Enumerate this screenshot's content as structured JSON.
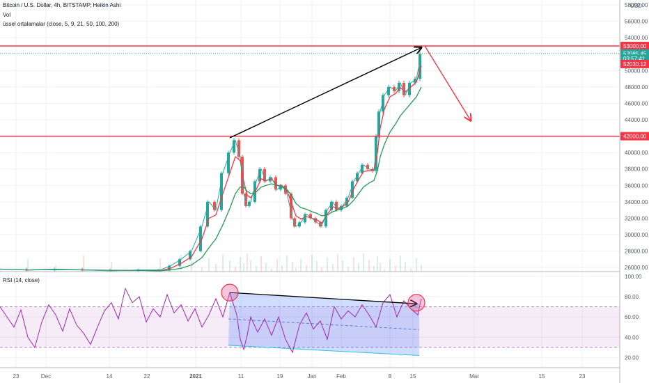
{
  "legend": {
    "title": "Bitcoin / U.S. Dollar, 4h, BITSTAMP, Heikin Ashi",
    "volume": "Vol",
    "ema": "üssel ortalamalar (close, 5, 9, 21, 50, 100, 200)",
    "rsi": "RSI (14, close)"
  },
  "price_axis": {
    "currency": "USD",
    "ticks": [
      "58000.00",
      "56000.00",
      "54000.00",
      "50000.00",
      "48000.00",
      "46000.00",
      "44000.00",
      "40000.00",
      "38000.00",
      "36000.00",
      "34000.00",
      "32000.00",
      "30000.00",
      "28000.00",
      "26000.00"
    ],
    "tags": [
      {
        "label": "53000.00",
        "value": 53000,
        "color": "#f23645"
      },
      {
        "label": "52085.45",
        "value": 52085,
        "color": "#26a69a"
      },
      {
        "label": "03:57:41",
        "value": 51450,
        "color": "#26a69a"
      },
      {
        "label": "52030.12",
        "value": 50800,
        "color": "#f23645"
      },
      {
        "label": "42000.00",
        "value": 42000,
        "color": "#f23645"
      }
    ]
  },
  "rsi_axis": {
    "ticks": [
      "100.00",
      "80.00",
      "60.00",
      "40.00",
      "20.00"
    ]
  },
  "time_axis": {
    "labels": [
      "23",
      "Dec",
      "14",
      "22",
      "2021",
      "11",
      "19",
      "Jan",
      "Feb",
      "8",
      "15",
      "Mar",
      "15",
      "23"
    ],
    "bold": [
      "2021"
    ]
  },
  "chart_data": [
    {
      "type": "line",
      "title": "Bitcoin / U.S. Dollar, 4h, BITSTAMP, Heikin Ashi",
      "ylim": [
        25500,
        58600
      ],
      "x": [
        0,
        40,
        80,
        120,
        160,
        200,
        230,
        245,
        260,
        275,
        290,
        300,
        310,
        320,
        330,
        338,
        345,
        350,
        355,
        360,
        368,
        375,
        382,
        390,
        398,
        405,
        412,
        420,
        425,
        432,
        440,
        448,
        455,
        462,
        470,
        478,
        485,
        492,
        500,
        508,
        515,
        522,
        530,
        537,
        542,
        546,
        552,
        560,
        568,
        575,
        582,
        590,
        598,
        605
      ],
      "y": [
        25800,
        25700,
        25800,
        25700,
        25600,
        25700,
        25700,
        26200,
        27000,
        28000,
        31000,
        34000,
        33000,
        37500,
        40000,
        41500,
        39500,
        35000,
        33500,
        34000,
        36500,
        38000,
        36500,
        37000,
        35500,
        36000,
        35000,
        32000,
        31000,
        31500,
        32500,
        32000,
        31500,
        31000,
        33000,
        34000,
        33000,
        33500,
        34500,
        36500,
        37500,
        38500,
        38000,
        37800,
        42000,
        45000,
        47000,
        48000,
        47500,
        48500,
        47000,
        48500,
        49000,
        52000
      ],
      "series": [
        {
          "name": "EMA fast",
          "color": "#f23645",
          "y": [
            25800,
            25700,
            25800,
            25700,
            25650,
            25650,
            25600,
            25900,
            26500,
            27300,
            29500,
            32000,
            32400,
            35000,
            37500,
            39500,
            39000,
            36500,
            34800,
            34500,
            35500,
            36800,
            36600,
            36800,
            36000,
            36000,
            35400,
            33500,
            32300,
            31900,
            32200,
            32000,
            31800,
            31400,
            32500,
            33400,
            33200,
            33400,
            34000,
            35600,
            36700,
            37700,
            37800,
            37800,
            40000,
            43000,
            45300,
            46800,
            47200,
            47900,
            47400,
            48000,
            48600,
            50600
          ]
        },
        {
          "name": "EMA slow",
          "color": "#229954",
          "y": [
            25800,
            25700,
            25750,
            25700,
            25650,
            25650,
            25600,
            25700,
            25900,
            26300,
            27200,
            28400,
            29500,
            31200,
            33200,
            35000,
            35800,
            35800,
            35300,
            35000,
            35200,
            35800,
            36000,
            36200,
            36000,
            35800,
            35500,
            34600,
            33800,
            33300,
            33100,
            32800,
            32600,
            32300,
            32400,
            32800,
            33000,
            33200,
            33500,
            34200,
            35000,
            35800,
            36300,
            36600,
            37800,
            39500,
            41000,
            42500,
            43500,
            44500,
            45200,
            46000,
            46800,
            48000
          ]
        }
      ],
      "annotations": {
        "lines": [
          {
            "value": 53000,
            "color": "#f23645"
          },
          {
            "value": 42000,
            "color": "#f23645"
          }
        ],
        "arrows": [
          {
            "from": [
              330,
              41800
            ],
            "to": [
              605,
              52800
            ],
            "color": "#000000"
          },
          {
            "from": [
              610,
              53000
            ],
            "to": [
              676,
              43900
            ],
            "color": "#f23645"
          }
        ]
      }
    },
    {
      "type": "line",
      "title": "RSI (14, close)",
      "ylim": [
        10,
        104
      ],
      "bands": [
        70,
        30
      ],
      "midline": 50,
      "x": [
        0,
        10,
        20,
        30,
        40,
        50,
        60,
        70,
        80,
        90,
        100,
        110,
        120,
        130,
        140,
        150,
        160,
        170,
        180,
        190,
        200,
        210,
        220,
        230,
        240,
        250,
        260,
        270,
        280,
        290,
        300,
        310,
        320,
        330,
        340,
        345,
        350,
        355,
        360,
        370,
        380,
        390,
        400,
        410,
        420,
        430,
        440,
        450,
        460,
        470,
        480,
        490,
        500,
        510,
        520,
        530,
        540,
        550,
        560,
        570,
        580,
        590,
        600,
        605
      ],
      "y": [
        70,
        60,
        50,
        67,
        40,
        30,
        55,
        72,
        62,
        46,
        68,
        52,
        44,
        33,
        50,
        66,
        74,
        58,
        88,
        74,
        80,
        55,
        68,
        60,
        82,
        64,
        72,
        56,
        68,
        50,
        62,
        78,
        60,
        84,
        62,
        38,
        28,
        42,
        60,
        45,
        58,
        42,
        60,
        38,
        25,
        52,
        64,
        48,
        56,
        38,
        70,
        58,
        66,
        60,
        72,
        62,
        50,
        74,
        82,
        60,
        76,
        68,
        62,
        78
      ],
      "series": [
        {
          "name": "RSI",
          "color": "#9c27b0"
        }
      ],
      "annotations": {
        "trend_high": {
          "from": [
            330,
            84
          ],
          "to": [
            598,
            73
          ]
        },
        "trend_low": {
          "from": [
            328,
            32
          ],
          "to": [
            602,
            22
          ]
        },
        "circles": [
          [
            330,
            84
          ],
          [
            598,
            74
          ]
        ]
      }
    }
  ]
}
